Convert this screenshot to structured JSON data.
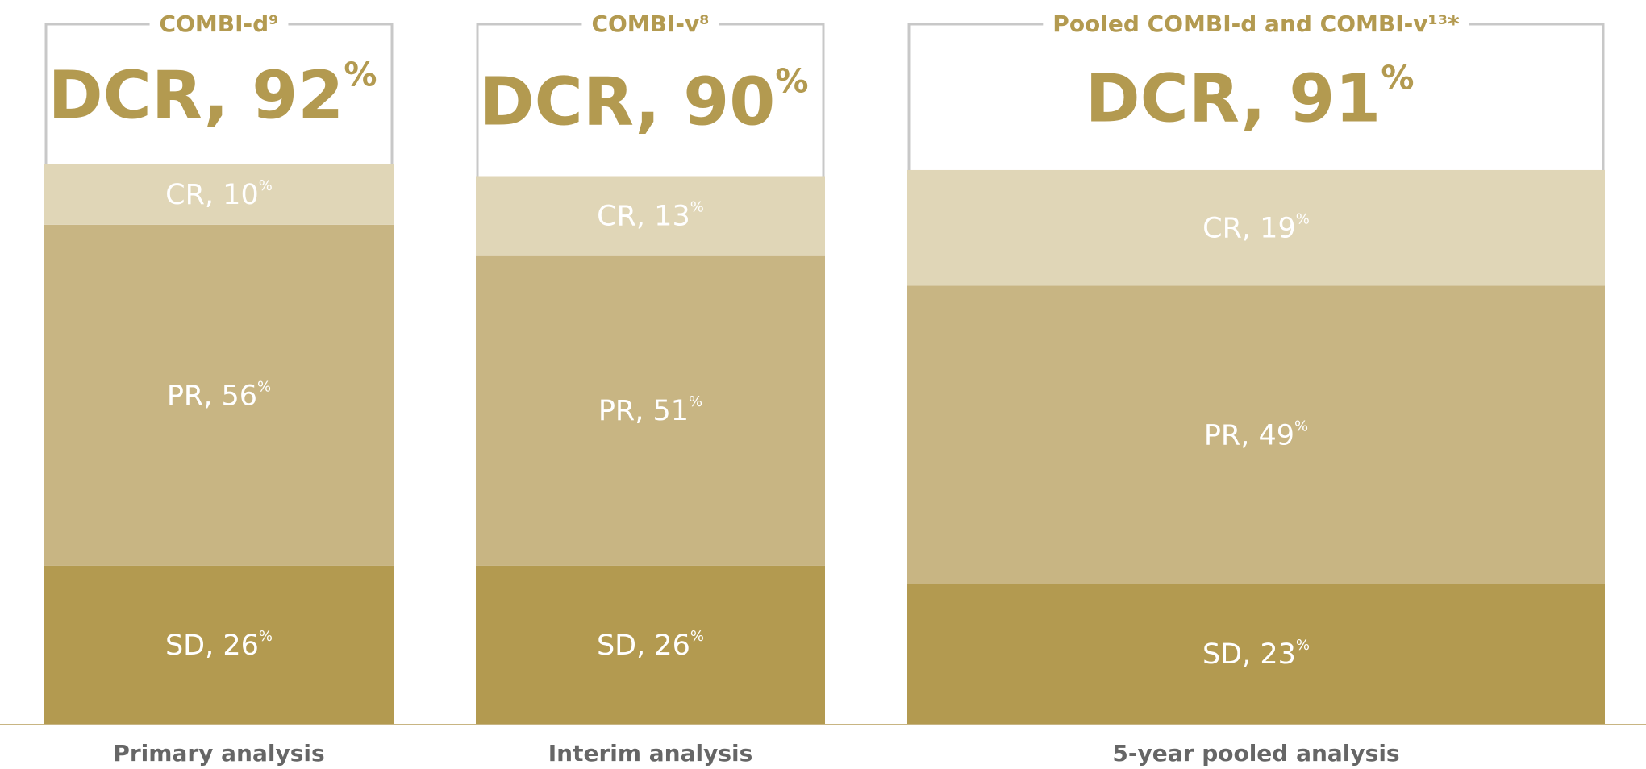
{
  "chart_data": {
    "type": "stacked_bar",
    "categories": [
      "Primary analysis",
      "Interim analysis",
      "5-year pooled analysis"
    ],
    "groups": [
      "COMBI-d⁹",
      "COMBI-v⁸",
      "Pooled COMBI-d and COMBI-v¹³*"
    ],
    "series": [
      {
        "name": "SD",
        "color": "#b39a50",
        "values": [
          26,
          26,
          23
        ],
        "value_labels": [
          "SD, 26%",
          "SD, 26%",
          "SD, 23%"
        ]
      },
      {
        "name": "PR",
        "color": "#c8b583",
        "values": [
          56,
          51,
          49
        ],
        "value_labels": [
          "PR, 56%",
          "PR, 51%",
          "PR, 49%"
        ]
      },
      {
        "name": "CR",
        "color": "#e0d6b7",
        "values": [
          10,
          13,
          19
        ],
        "value_labels": [
          "CR, 10%",
          "CR, 13%",
          "CR, 19%"
        ]
      }
    ],
    "dcr": {
      "values": [
        92,
        90,
        91
      ],
      "value_labels": [
        "DCR, 92%",
        "DCR, 90%",
        "DCR, 91%"
      ],
      "color": "#b39a50"
    }
  }
}
